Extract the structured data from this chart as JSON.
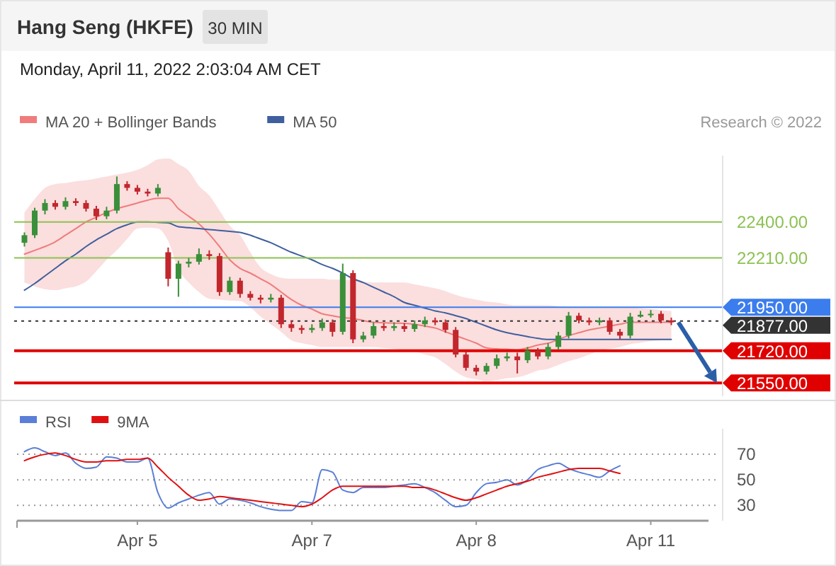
{
  "chart_data": [
    {
      "type": "candlestick",
      "title": "Hang Seng (HKFE)",
      "subtitle": "Monday, April 11, 2022 2:03:04 AM CET",
      "annotations": [
        "30 MIN",
        "Research © 2022"
      ],
      "legend": "top left",
      "tick_labels": "y",
      "ylim": [
        21480,
        22750
      ],
      "yticks": [
        {
          "value": 22400,
          "label": "22400.00"
        },
        {
          "value": 22210,
          "label": "22210.00"
        },
        {
          "value": 21950,
          "label": "21950.00"
        },
        {
          "value": 21877,
          "label": "21877.00"
        },
        {
          "value": 21720,
          "label": "21720.00"
        },
        {
          "value": 21550,
          "label": "21550.00"
        }
      ],
      "categories": [
        null,
        null,
        null,
        null,
        null,
        null,
        null,
        null,
        null,
        null,
        null,
        null,
        null,
        null,
        null,
        null,
        null,
        null,
        null,
        null,
        null,
        null,
        null,
        null,
        null,
        null,
        null,
        null,
        null,
        null,
        null,
        null,
        null,
        null,
        null,
        null,
        null,
        null,
        null,
        null,
        null,
        null,
        null,
        null,
        null,
        null,
        null,
        null,
        null,
        null,
        null,
        null,
        null,
        null,
        null,
        null,
        null,
        null,
        null,
        null,
        null,
        null,
        null,
        null
      ],
      "ohlc": [
        [
          22290,
          22345,
          22270,
          22330
        ],
        [
          22330,
          22475,
          22315,
          22460
        ],
        [
          22460,
          22520,
          22440,
          22500
        ],
        [
          22500,
          22515,
          22465,
          22480
        ],
        [
          22480,
          22530,
          22465,
          22510
        ],
        [
          22510,
          22525,
          22485,
          22500
        ],
        [
          22500,
          22515,
          22455,
          22470
        ],
        [
          22470,
          22485,
          22410,
          22430
        ],
        [
          22430,
          22480,
          22415,
          22460
        ],
        [
          22460,
          22640,
          22445,
          22600
        ],
        [
          22600,
          22615,
          22565,
          22580
        ],
        [
          22580,
          22595,
          22545,
          22560
        ],
        [
          22560,
          22575,
          22535,
          22550
        ],
        [
          22550,
          22600,
          22535,
          22580
        ],
        [
          22240,
          22265,
          22060,
          22100
        ],
        [
          22100,
          22195,
          22005,
          22180
        ],
        [
          22180,
          22210,
          22160,
          22190
        ],
        [
          22190,
          22260,
          22175,
          22230
        ],
        [
          22230,
          22250,
          22200,
          22220
        ],
        [
          22220,
          22235,
          22010,
          22030
        ],
        [
          22030,
          22110,
          22015,
          22090
        ],
        [
          22090,
          22105,
          22000,
          22020
        ],
        [
          22020,
          22035,
          21985,
          22000
        ],
        [
          22000,
          22015,
          21970,
          21990
        ],
        [
          21990,
          22020,
          21975,
          22000
        ],
        [
          22000,
          22015,
          21840,
          21860
        ],
        [
          21860,
          21880,
          21820,
          21840
        ],
        [
          21840,
          21855,
          21810,
          21830
        ],
        [
          21830,
          21860,
          21815,
          21840
        ],
        [
          21840,
          21890,
          21825,
          21870
        ],
        [
          21870,
          21885,
          21795,
          21820
        ],
        [
          21820,
          22180,
          21805,
          22130
        ],
        [
          22130,
          22145,
          21760,
          21780
        ],
        [
          21780,
          21820,
          21765,
          21800
        ],
        [
          21800,
          21870,
          21785,
          21850
        ],
        [
          21850,
          21865,
          21825,
          21840
        ],
        [
          21840,
          21870,
          21825,
          21850
        ],
        [
          21850,
          21865,
          21820,
          21835
        ],
        [
          21835,
          21880,
          21820,
          21860
        ],
        [
          21860,
          21900,
          21845,
          21880
        ],
        [
          21880,
          21895,
          21855,
          21870
        ],
        [
          21870,
          21885,
          21815,
          21830
        ],
        [
          21830,
          21845,
          21685,
          21700
        ],
        [
          21700,
          21715,
          21615,
          21630
        ],
        [
          21630,
          21645,
          21590,
          21610
        ],
        [
          21610,
          21655,
          21595,
          21640
        ],
        [
          21640,
          21700,
          21625,
          21680
        ],
        [
          21680,
          21710,
          21665,
          21690
        ],
        [
          21690,
          21710,
          21600,
          21670
        ],
        [
          21670,
          21740,
          21655,
          21720
        ],
        [
          21720,
          21735,
          21675,
          21690
        ],
        [
          21690,
          21760,
          21675,
          21740
        ],
        [
          21740,
          21820,
          21725,
          21800
        ],
        [
          21800,
          21925,
          21785,
          21905
        ],
        [
          21905,
          21920,
          21865,
          21880
        ],
        [
          21880,
          21895,
          21855,
          21870
        ],
        [
          21870,
          21895,
          21855,
          21880
        ],
        [
          21880,
          21895,
          21805,
          21820
        ],
        [
          21820,
          21835,
          21780,
          21800
        ],
        [
          21800,
          21920,
          21785,
          21900
        ],
        [
          21900,
          21930,
          21895,
          21910
        ],
        [
          21910,
          21935,
          21895,
          21915
        ],
        [
          21915,
          21930,
          21865,
          21880
        ],
        [
          21880,
          21895,
          21855,
          21870
        ]
      ],
      "series": [
        {
          "type": "line",
          "name": "MA 20 + Bollinger Bands",
          "color": "#f07c7c",
          "values": [
            22230,
            22250,
            22270,
            22295,
            22330,
            22365,
            22400,
            22425,
            22450,
            22470,
            22485,
            22500,
            22515,
            22525,
            22525,
            22470,
            22430,
            22390,
            22335,
            22270,
            22200,
            22155,
            22130,
            22100,
            22070,
            22030,
            21990,
            21960,
            21940,
            21915,
            21905,
            21895,
            21890,
            21880,
            21870,
            21868,
            21866,
            21865,
            21860,
            21850,
            21840,
            21820,
            21800,
            21780,
            21760,
            21735,
            21730,
            21728,
            21725,
            21735,
            21750,
            21760,
            21780,
            21800,
            21815,
            21830,
            21840,
            21850,
            21860,
            21870,
            21870,
            21870,
            21870,
            21870
          ],
          "upper": [
            22450,
            22520,
            22580,
            22600,
            22605,
            22615,
            22620,
            22630,
            22640,
            22650,
            22660,
            22675,
            22700,
            22730,
            22735,
            22705,
            22670,
            22590,
            22540,
            22460,
            22380,
            22330,
            22240,
            22160,
            22125,
            22105,
            22100,
            22100,
            22100,
            22100,
            22095,
            22095,
            22090,
            22085,
            22080,
            22080,
            22080,
            22080,
            22070,
            22060,
            22050,
            22035,
            22015,
            22000,
            21990,
            21980,
            21975,
            21965,
            21960,
            21960,
            21960,
            21960,
            21955,
            21950,
            21950,
            21950,
            21950,
            21950,
            21950,
            21950,
            21945,
            21940,
            21935,
            21930
          ],
          "lower": [
            22080,
            22060,
            22045,
            22040,
            22050,
            22060,
            22085,
            22140,
            22200,
            22250,
            22310,
            22365,
            22370,
            22365,
            22300,
            22150,
            22080,
            22030,
            21995,
            21990,
            21985,
            21982,
            21950,
            21900,
            21860,
            21820,
            21775,
            21760,
            21750,
            21740,
            21740,
            21740,
            21740,
            21740,
            21740,
            21735,
            21730,
            21722,
            21715,
            21700,
            21685,
            21650,
            21610,
            21580,
            21570,
            21560,
            21565,
            21575,
            21580,
            21595,
            21615,
            21625,
            21645,
            21665,
            21680,
            21700,
            21720,
            21730,
            21740,
            21755,
            21762,
            21770,
            21775,
            21780
          ]
        },
        {
          "type": "line",
          "name": "MA 50",
          "color": "#3f5f9f",
          "values": [
            22040,
            22075,
            22115,
            22155,
            22195,
            22230,
            22270,
            22305,
            22335,
            22365,
            22385,
            22400,
            22400,
            22398,
            22395,
            22375,
            22370,
            22365,
            22360,
            22355,
            22350,
            22345,
            22330,
            22310,
            22290,
            22265,
            22240,
            22220,
            22200,
            22175,
            22155,
            22130,
            22100,
            22080,
            22055,
            22030,
            22005,
            21975,
            21960,
            21945,
            21930,
            21920,
            21905,
            21890,
            21870,
            21850,
            21830,
            21815,
            21805,
            21795,
            21785,
            21780,
            21780,
            21780,
            21780,
            21780,
            21780,
            21780,
            21780,
            21780,
            21780,
            21780,
            21780,
            21780
          ]
        }
      ],
      "ref_lines": [
        {
          "axis": "y",
          "value": 22400,
          "color": "#8cc152"
        },
        {
          "axis": "y",
          "value": 22210,
          "color": "#8cc152"
        },
        {
          "axis": "y",
          "value": 21950,
          "color": "#3b7ded"
        },
        {
          "axis": "y",
          "value": 21877,
          "color": "#333333",
          "line_style": "dotted"
        },
        {
          "axis": "y",
          "value": 21720,
          "color": "#e00000"
        },
        {
          "axis": "y",
          "value": 21550,
          "color": "#e00000"
        }
      ]
    },
    {
      "type": "line",
      "legend": "top left",
      "grid": "y",
      "categories": [
        null,
        null,
        null,
        null,
        null,
        null,
        null,
        null,
        null,
        null,
        null,
        "Apr 5",
        null,
        null,
        null,
        null,
        null,
        null,
        null,
        null,
        null,
        null,
        null,
        null,
        null,
        null,
        null,
        null,
        "Apr 7",
        null,
        null,
        null,
        null,
        null,
        null,
        null,
        null,
        null,
        null,
        null,
        null,
        null,
        null,
        null,
        "Apr 8",
        null,
        null,
        null,
        null,
        null,
        null,
        null,
        null,
        null,
        null,
        null,
        null,
        null,
        null,
        null,
        null,
        "Apr 11",
        null,
        null
      ],
      "series": [
        {
          "name": "RSI",
          "color": "#5b7fd6",
          "values": [
            72,
            75,
            72,
            69,
            71,
            63,
            59,
            60,
            68,
            67,
            64,
            64,
            67,
            40,
            28,
            32,
            35,
            38,
            40,
            31,
            35,
            34,
            32,
            29,
            27,
            26,
            26,
            33,
            32,
            58,
            56,
            42,
            40,
            44,
            44,
            44,
            45,
            46,
            47,
            44,
            40,
            34,
            29,
            30,
            40,
            47,
            48,
            50,
            46,
            50,
            58,
            61,
            63,
            59,
            56,
            54,
            52,
            57,
            61,
            null,
            null,
            null,
            null,
            null
          ]
        },
        {
          "name": "9MA",
          "color": "#e01010",
          "values": [
            65,
            68,
            70,
            71,
            69,
            66,
            64,
            64,
            65,
            65,
            66,
            66,
            67,
            60,
            52,
            45,
            38,
            34,
            35,
            37,
            36,
            35,
            34,
            33,
            32,
            31,
            30,
            29,
            31,
            36,
            42,
            45,
            45,
            45,
            45,
            45,
            45,
            45,
            44,
            44,
            42,
            39,
            36,
            34,
            36,
            39,
            42,
            45,
            47,
            49,
            52,
            54,
            56,
            58,
            59,
            59,
            59,
            57,
            55,
            null,
            null,
            null,
            null,
            null
          ]
        }
      ],
      "ylim": [
        18,
        90
      ],
      "yticks": [
        70,
        50,
        30
      ]
    }
  ]
}
